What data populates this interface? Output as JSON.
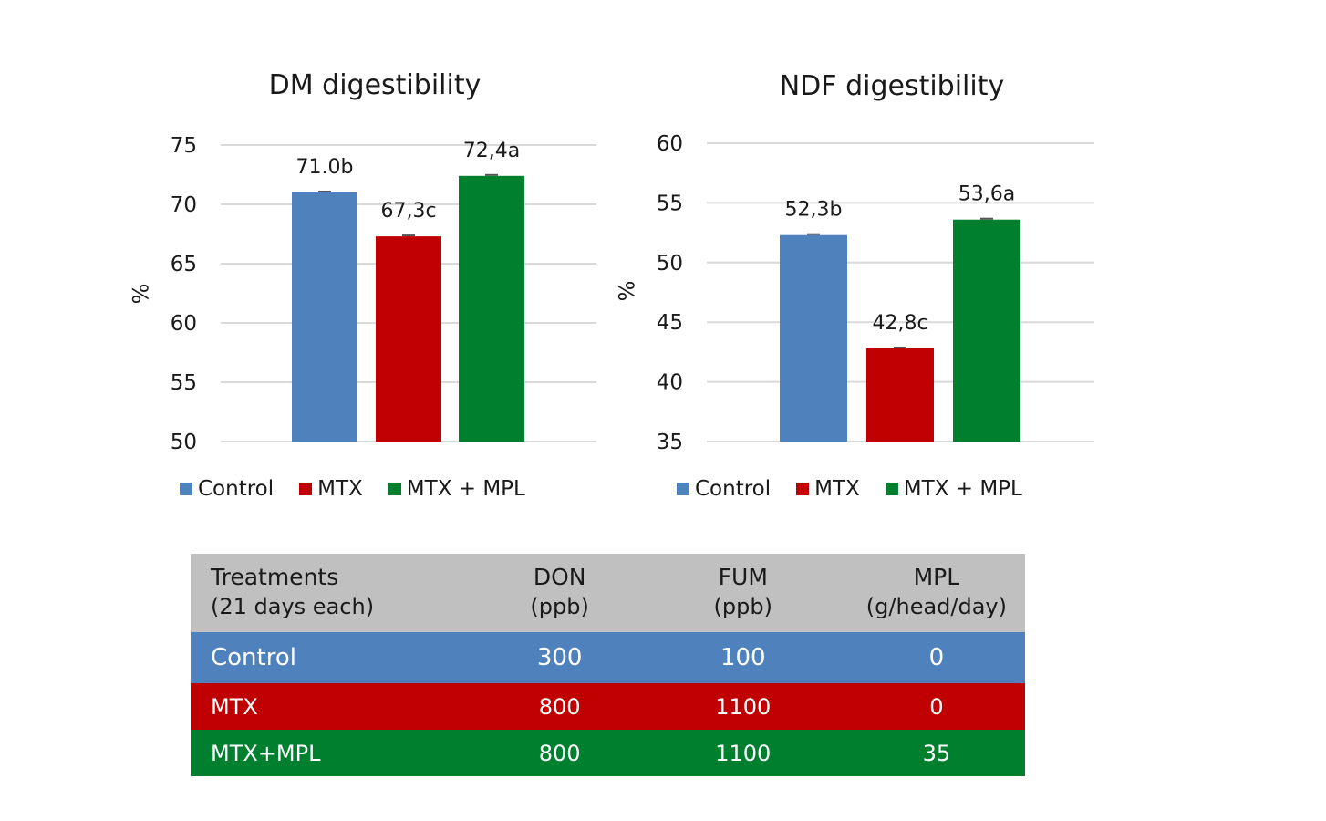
{
  "chart_data": [
    {
      "type": "bar",
      "title": "DM digestibility",
      "xlabel": "",
      "ylabel": "%",
      "ylim": [
        50,
        75
      ],
      "yticks": [
        50,
        55,
        60,
        65,
        70,
        75
      ],
      "grid": true,
      "legend_position": "bottom",
      "categories": [
        "Control",
        "MTX",
        "MTX + MPL"
      ],
      "values": [
        71.0,
        67.3,
        72.4
      ],
      "data_labels": [
        "71.0b",
        "67,3c",
        "72,4a"
      ],
      "colors": [
        "#4f81bd",
        "#c00000",
        "#00802f"
      ]
    },
    {
      "type": "bar",
      "title": "NDF digestibility",
      "xlabel": "",
      "ylabel": "%",
      "ylim": [
        35,
        60
      ],
      "yticks": [
        35,
        40,
        45,
        50,
        55,
        60
      ],
      "grid": true,
      "legend_position": "bottom",
      "categories": [
        "Control",
        "MTX",
        "MTX + MPL"
      ],
      "values": [
        52.3,
        42.8,
        53.6
      ],
      "data_labels": [
        "52,3b",
        "42,8c",
        "53,6a"
      ],
      "colors": [
        "#4f81bd",
        "#c00000",
        "#00802f"
      ]
    }
  ],
  "table": {
    "headers": [
      {
        "main": "Treatments",
        "sub": "(21 days each)"
      },
      {
        "main": "DON",
        "sub": "(ppb)"
      },
      {
        "main": "FUM",
        "sub": "(ppb)"
      },
      {
        "main": "MPL",
        "sub": "(g/head/day)"
      }
    ],
    "rows": [
      {
        "cells": [
          "Control",
          "300",
          "100",
          "0"
        ],
        "color": "#4f81bd"
      },
      {
        "cells": [
          "MTX",
          "800",
          "1100",
          "0"
        ],
        "color": "#c00000"
      },
      {
        "cells": [
          "MTX+MPL",
          "800",
          "1100",
          "35"
        ],
        "color": "#00802f"
      }
    ],
    "header_color": "#c0c0c0"
  }
}
